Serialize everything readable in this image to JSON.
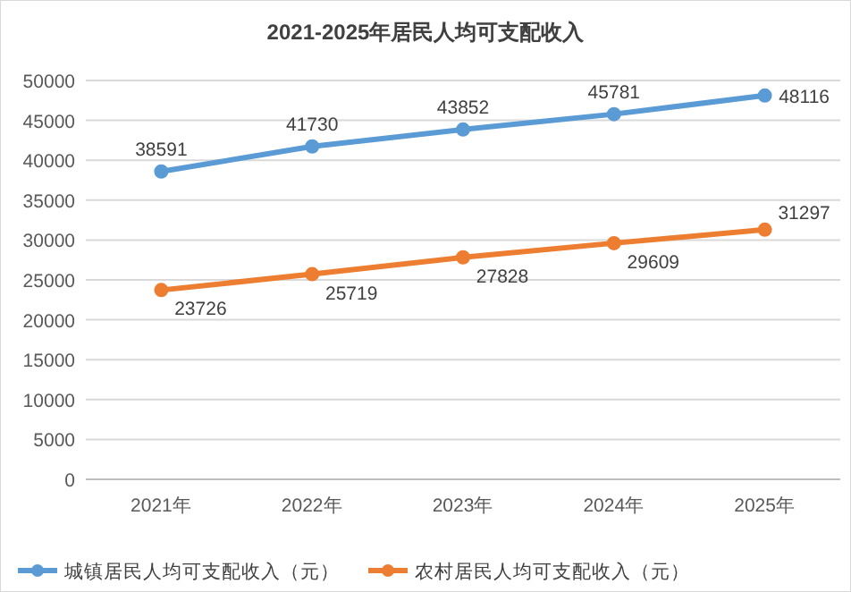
{
  "chart_data": {
    "type": "line",
    "title": "2021-2025年居民人均可支配收入",
    "categories": [
      "2021年",
      "2022年",
      "2023年",
      "2024年",
      "2025年"
    ],
    "series": [
      {
        "name": "城镇居民人均可支配收入（元）",
        "color": "#5b9bd5",
        "values": [
          38591,
          41730,
          43852,
          45781,
          48116
        ]
      },
      {
        "name": "农村居民人均可支配收入（元）",
        "color": "#ed7d31",
        "values": [
          23726,
          25719,
          27828,
          29609,
          31297
        ]
      }
    ],
    "ylim": [
      0,
      50000
    ],
    "yticks": [
      0,
      5000,
      10000,
      15000,
      20000,
      25000,
      30000,
      35000,
      40000,
      45000,
      50000
    ],
    "grid": "y",
    "legend": "bottom",
    "marker": "circle",
    "line_style": "solid",
    "data_labels": true
  }
}
